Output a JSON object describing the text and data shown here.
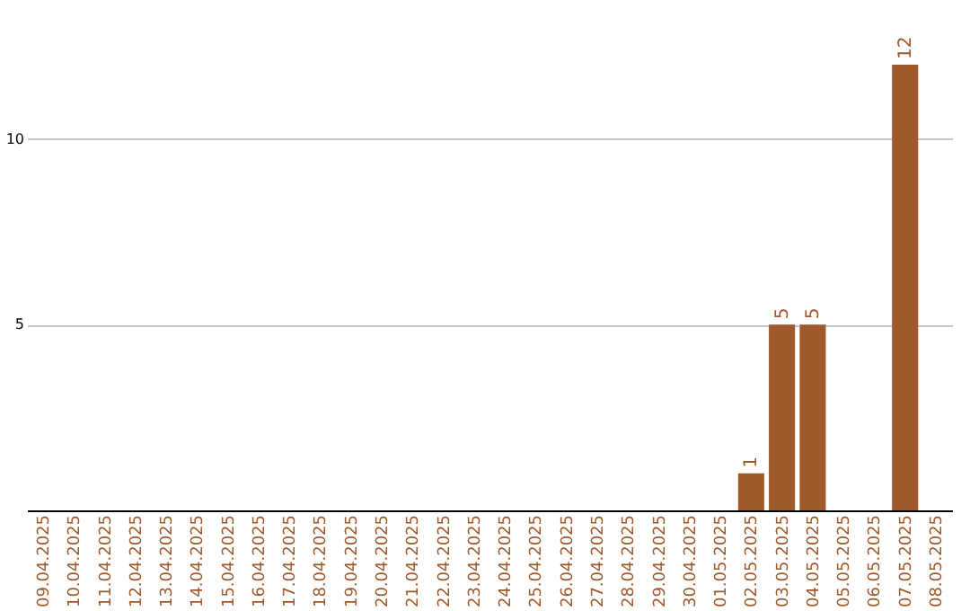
{
  "chart_data": {
    "type": "bar",
    "categories": [
      "09.04.2025",
      "10.04.2025",
      "11.04.2025",
      "12.04.2025",
      "13.04.2025",
      "14.04.2025",
      "15.04.2025",
      "16.04.2025",
      "17.04.2025",
      "18.04.2025",
      "19.04.2025",
      "20.04.2025",
      "21.04.2025",
      "22.04.2025",
      "23.04.2025",
      "24.04.2025",
      "25.04.2025",
      "26.04.2025",
      "27.04.2025",
      "28.04.2025",
      "29.04.2025",
      "30.04.2025",
      "01.05.2025",
      "02.05.2025",
      "03.05.2025",
      "04.05.2025",
      "05.05.2025",
      "06.05.2025",
      "07.05.2025",
      "08.05.2025"
    ],
    "values": [
      0,
      0,
      0,
      0,
      0,
      0,
      0,
      0,
      0,
      0,
      0,
      0,
      0,
      0,
      0,
      0,
      0,
      0,
      0,
      0,
      0,
      0,
      0,
      1,
      5,
      5,
      0,
      0,
      12,
      0
    ],
    "value_labels": [
      null,
      null,
      null,
      null,
      null,
      null,
      null,
      null,
      null,
      null,
      null,
      null,
      null,
      null,
      null,
      null,
      null,
      null,
      null,
      null,
      null,
      null,
      null,
      "1",
      "5",
      "5",
      null,
      null,
      "12",
      null
    ],
    "color": "#a0592b",
    "ylim": [
      0,
      12
    ],
    "yticks": [
      5,
      10
    ],
    "grid": "y"
  }
}
